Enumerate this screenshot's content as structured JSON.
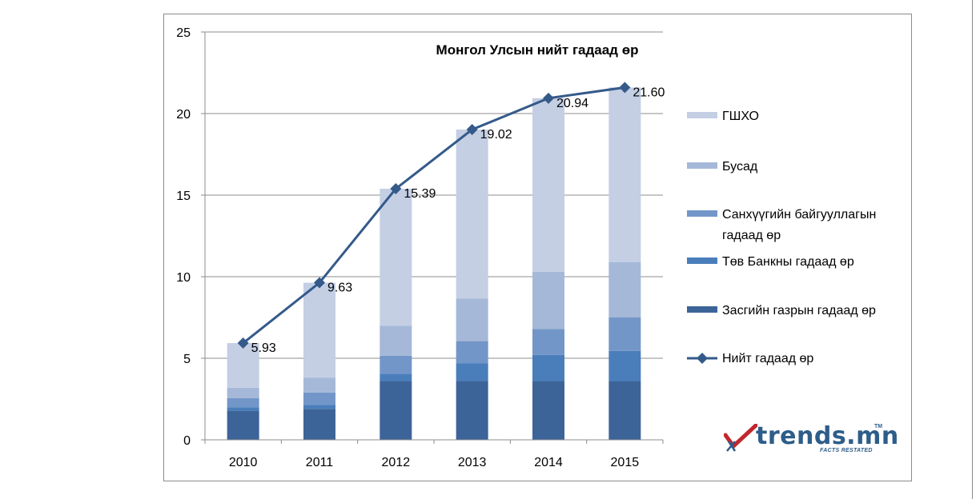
{
  "chart_data": {
    "type": "bar",
    "stacked": true,
    "title": "Монгол  Улсын нийт гадаад  өр",
    "categories": [
      "2010",
      "2011",
      "2012",
      "2013",
      "2014",
      "2015"
    ],
    "ylim": [
      0,
      25
    ],
    "yticks": [
      "0",
      "5",
      "10",
      "15",
      "20",
      "25"
    ],
    "grid": true,
    "legend_position": "right",
    "series": [
      {
        "name": "Засгийн газрын гадаад өр",
        "color": "#3d6499",
        "values": [
          1.8,
          1.9,
          3.6,
          3.6,
          3.6,
          3.6
        ]
      },
      {
        "name": "Төв Банкны гадаад өр",
        "color": "#4a7ebb",
        "values": [
          0.2,
          0.25,
          0.45,
          1.1,
          1.6,
          1.85
        ]
      },
      {
        "name": "Санхүүгийн байгууллагын гадаад өр",
        "color": "#7396c8",
        "values": [
          0.55,
          0.75,
          1.1,
          1.35,
          1.6,
          2.05
        ]
      },
      {
        "name": "Бусад",
        "color": "#a5b8d8",
        "values": [
          0.65,
          0.9,
          1.85,
          2.6,
          3.5,
          3.4
        ]
      },
      {
        "name": "ГШХО",
        "color": "#c4cfe4",
        "values": [
          2.73,
          5.83,
          8.39,
          10.37,
          10.64,
          10.7
        ]
      }
    ],
    "line": {
      "name": "Нийт гадаад өр",
      "color": "#345a8a",
      "values": [
        5.93,
        9.63,
        15.39,
        19.02,
        20.94,
        21.6
      ],
      "labels": [
        "5.93",
        "9.63",
        "15.39",
        "19.02",
        "20.94",
        "21.60"
      ]
    },
    "legend_order": [
      {
        "text": [
          "ГШХО"
        ],
        "series": 4
      },
      {
        "text": [
          "Бусад"
        ],
        "series": 3
      },
      {
        "text": [
          "Санхүүгийн байгууллагын",
          "гадаад өр"
        ],
        "series": 2
      },
      {
        "text": [
          "Төв Банкны гадаад өр"
        ],
        "series": 1
      },
      {
        "text": [
          "Засгийн газрын гадаад өр"
        ],
        "series": 0
      },
      {
        "text": [
          "Нийт гадаад өр"
        ],
        "series": "line"
      }
    ]
  },
  "logo": {
    "name": "trends.mn",
    "tm": "TM",
    "tagline": "FACTS RESTATED"
  }
}
